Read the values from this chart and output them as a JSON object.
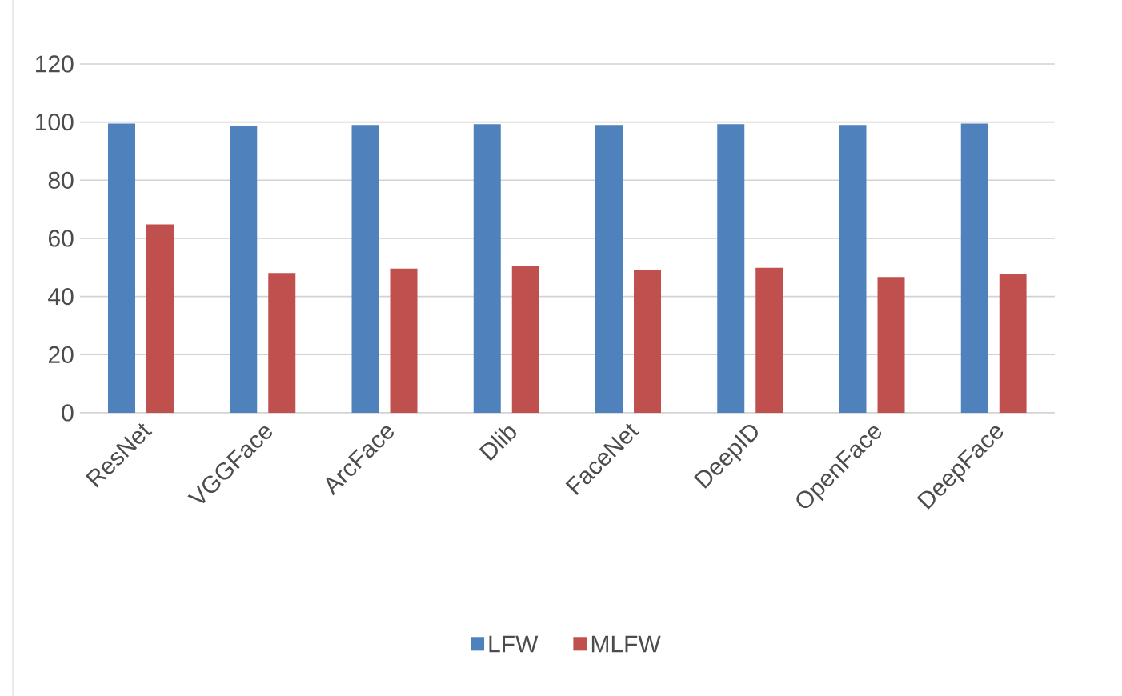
{
  "chart_data": {
    "type": "bar",
    "categories": [
      "ResNet",
      "VGGFace",
      "ArcFace",
      "Dlib",
      "FaceNet",
      "DeepID",
      "OpenFace",
      "DeepFace"
    ],
    "series": [
      {
        "name": "LFW",
        "color": "#4f81bd",
        "values": [
          99.5,
          98.5,
          99,
          99.3,
          99,
          99.3,
          99,
          99.5
        ]
      },
      {
        "name": "MLFW",
        "color": "#c0504d",
        "values": [
          64.8,
          48.1,
          49.6,
          50.4,
          49.1,
          49.9,
          46.7,
          47.6
        ]
      }
    ],
    "ylim": [
      0,
      120
    ],
    "yticks": [
      0,
      20,
      40,
      60,
      80,
      100,
      120
    ],
    "grid": "y",
    "legend": "bottom"
  }
}
